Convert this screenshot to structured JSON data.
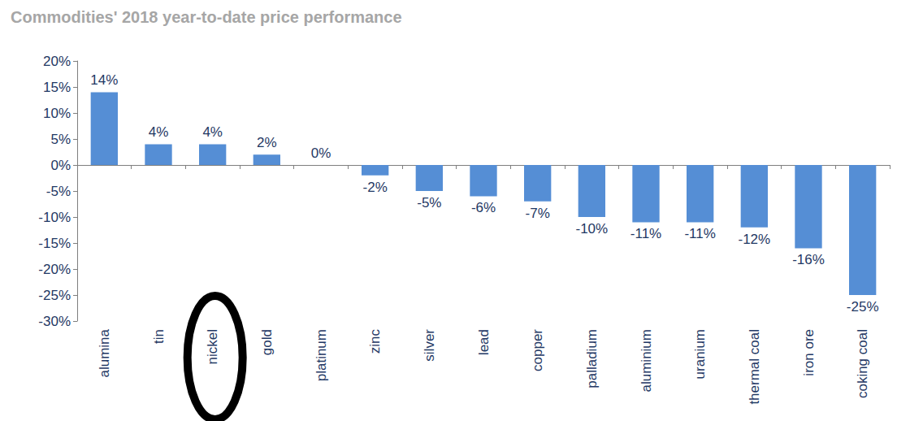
{
  "chart_data": {
    "type": "bar",
    "title": "Commodities' 2018 year-to-date price performance",
    "categories": [
      "alumina",
      "tin",
      "nickel",
      "gold",
      "platinum",
      "zinc",
      "silver",
      "lead",
      "copper",
      "palladium",
      "aluminium",
      "uranium",
      "thermal coal",
      "iron ore",
      "coking coal"
    ],
    "values": [
      14,
      4,
      4,
      2,
      0,
      -2,
      -5,
      -6,
      -7,
      -10,
      -11,
      -11,
      -12,
      -16,
      -25
    ],
    "value_labels": [
      "14%",
      "4%",
      "4%",
      "2%",
      "0%",
      "-2%",
      "-5%",
      "-6%",
      "-7%",
      "-10%",
      "-11%",
      "-11%",
      "-12%",
      "-16%",
      "-25%"
    ],
    "color": "#558ed5",
    "ylim": [
      -30,
      20
    ],
    "yticks": [
      {
        "value": -30,
        "label": "-30%"
      },
      {
        "value": -25,
        "label": "-25%"
      },
      {
        "value": -20,
        "label": "-20%"
      },
      {
        "value": -15,
        "label": "-15%"
      },
      {
        "value": -10,
        "label": "-10%"
      },
      {
        "value": -5,
        "label": "-5%"
      },
      {
        "value": 0,
        "label": "0%"
      },
      {
        "value": 5,
        "label": "5%"
      },
      {
        "value": 10,
        "label": "10%"
      },
      {
        "value": 15,
        "label": "15%"
      },
      {
        "value": 20,
        "label": "20%"
      }
    ],
    "grid": false,
    "data_labels": true
  }
}
